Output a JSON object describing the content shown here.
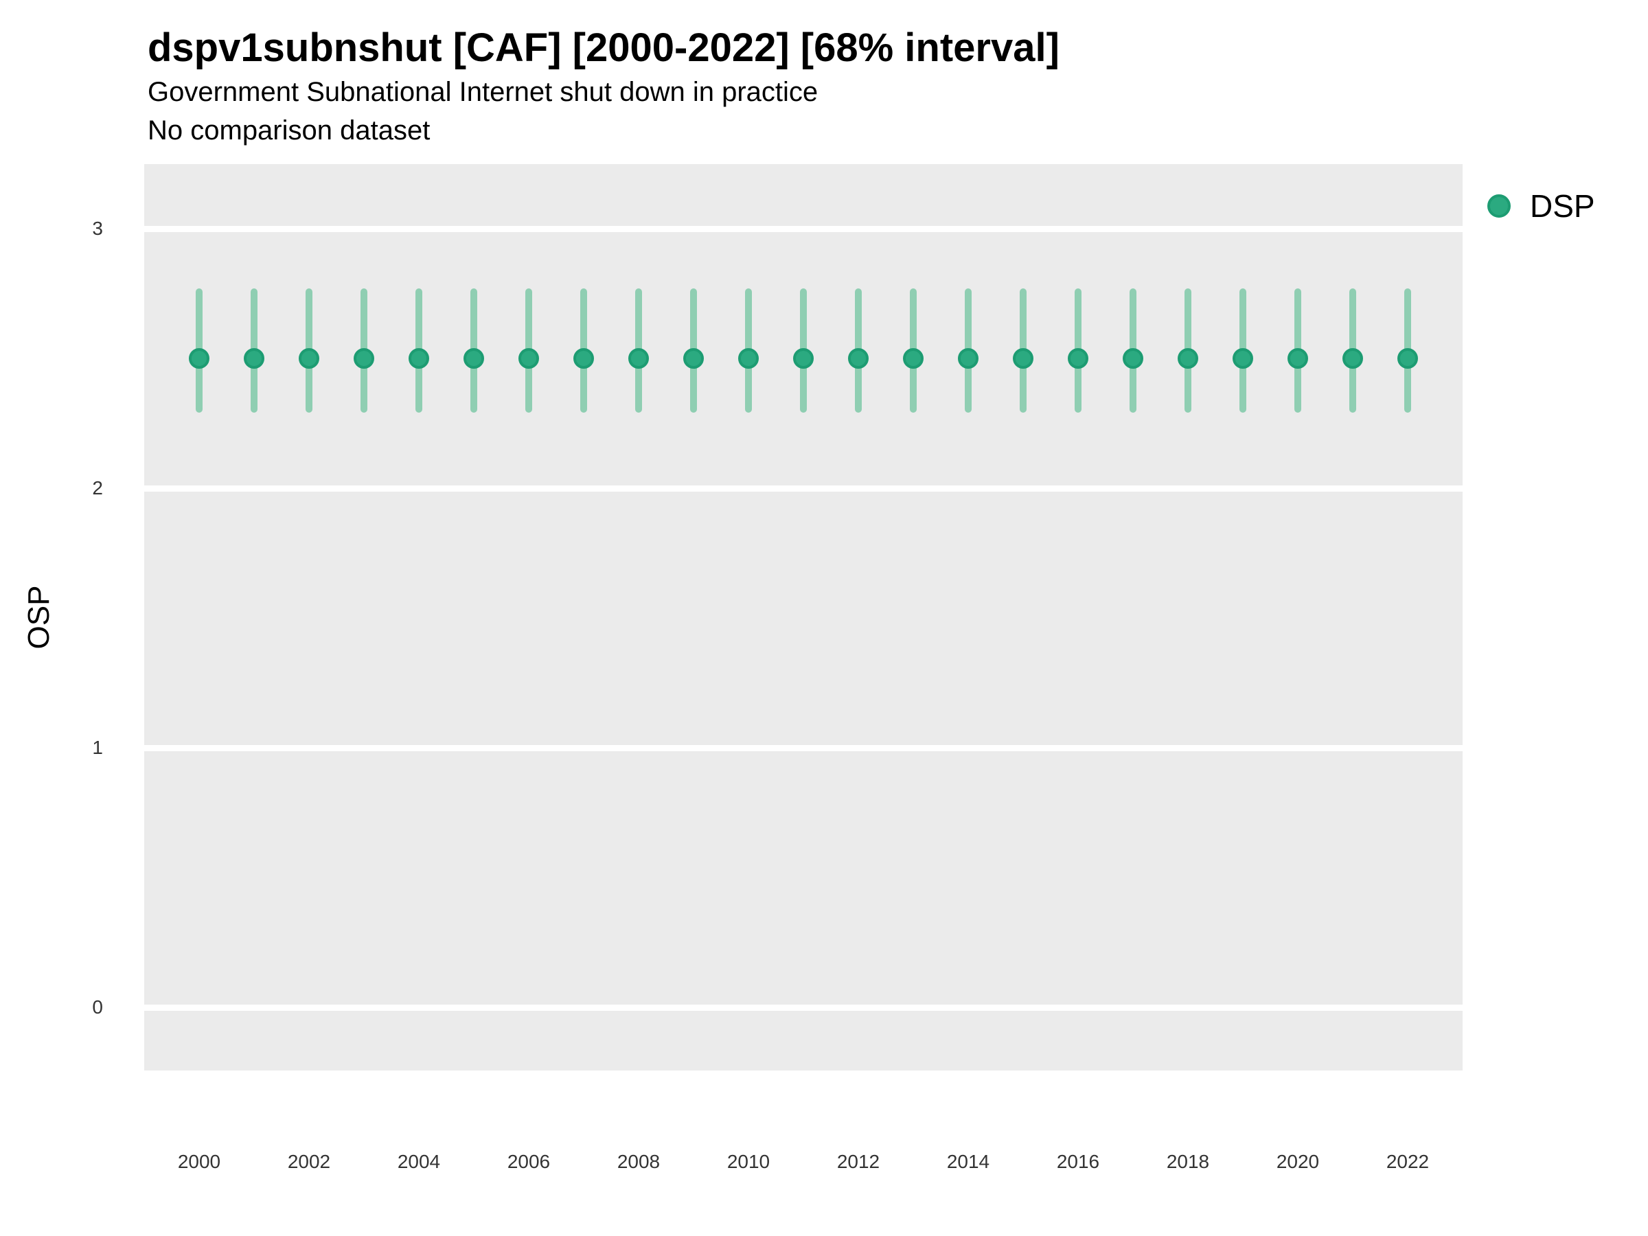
{
  "header": {
    "title": "dspv1subnshut [CAF] [2000-2022] [68% interval]",
    "subtitle": "Government Subnational Internet shut down in practice",
    "note": "No comparison dataset"
  },
  "axes": {
    "ylabel": "OSP",
    "yticks": [
      3,
      2,
      1,
      0
    ],
    "xticks": [
      2000,
      2002,
      2004,
      2006,
      2008,
      2010,
      2012,
      2014,
      2016,
      2018,
      2020,
      2022
    ]
  },
  "legend": {
    "items": [
      {
        "label": "DSP",
        "color": "#2BAA80"
      }
    ]
  },
  "colors": {
    "point_fill": "#2BAA80",
    "point_stroke": "#1D9C72",
    "interval_bar": "#8FCEB2",
    "panel_bg": "#EBEBEB",
    "gridline": "#FFFFFF"
  },
  "chart_data": {
    "type": "scatter",
    "title": "dspv1subnshut [CAF] [2000-2022] [68% interval]",
    "subtitle": "Government Subnational Internet shut down in practice",
    "note": "No comparison dataset",
    "interval": "68%",
    "xlabel": "",
    "ylabel": "OSP",
    "ylim": [
      -0.25,
      3.25
    ],
    "yticks": [
      0,
      1,
      2,
      3
    ],
    "xticks": [
      2000,
      2002,
      2004,
      2006,
      2008,
      2010,
      2012,
      2014,
      2016,
      2018,
      2020,
      2022
    ],
    "grid": "horizontal-major-only",
    "legend_position": "right",
    "x": [
      2000,
      2001,
      2002,
      2003,
      2004,
      2005,
      2006,
      2007,
      2008,
      2009,
      2010,
      2011,
      2012,
      2013,
      2014,
      2015,
      2016,
      2017,
      2018,
      2019,
      2020,
      2021,
      2022
    ],
    "series": [
      {
        "name": "DSP",
        "median": [
          2.5,
          2.5,
          2.5,
          2.5,
          2.5,
          2.5,
          2.5,
          2.5,
          2.5,
          2.5,
          2.5,
          2.5,
          2.5,
          2.5,
          2.5,
          2.5,
          2.5,
          2.5,
          2.5,
          2.5,
          2.5,
          2.5,
          2.5
        ],
        "ci_low": [
          2.29,
          2.29,
          2.29,
          2.29,
          2.29,
          2.29,
          2.29,
          2.29,
          2.29,
          2.29,
          2.29,
          2.29,
          2.29,
          2.29,
          2.29,
          2.29,
          2.29,
          2.29,
          2.29,
          2.29,
          2.29,
          2.29,
          2.29
        ],
        "ci_high": [
          2.77,
          2.77,
          2.77,
          2.77,
          2.77,
          2.77,
          2.77,
          2.77,
          2.77,
          2.77,
          2.77,
          2.77,
          2.77,
          2.77,
          2.77,
          2.77,
          2.77,
          2.77,
          2.77,
          2.77,
          2.77,
          2.77,
          2.77
        ]
      }
    ]
  }
}
